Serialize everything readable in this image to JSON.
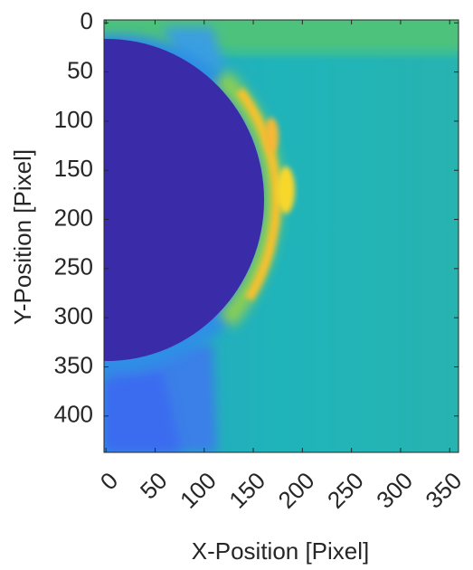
{
  "chart_data": {
    "type": "heatmap",
    "x_label": "X-Position [Pixel]",
    "y_label": "Y-Position [Pixel]",
    "xlim": [
      -2,
      359
    ],
    "ylim": [
      -3,
      437
    ],
    "y_reversed": true,
    "xticks": [
      0,
      50,
      100,
      150,
      200,
      250,
      300,
      350
    ],
    "yticks": [
      0,
      50,
      100,
      150,
      200,
      250,
      300,
      350,
      400
    ]
  }
}
